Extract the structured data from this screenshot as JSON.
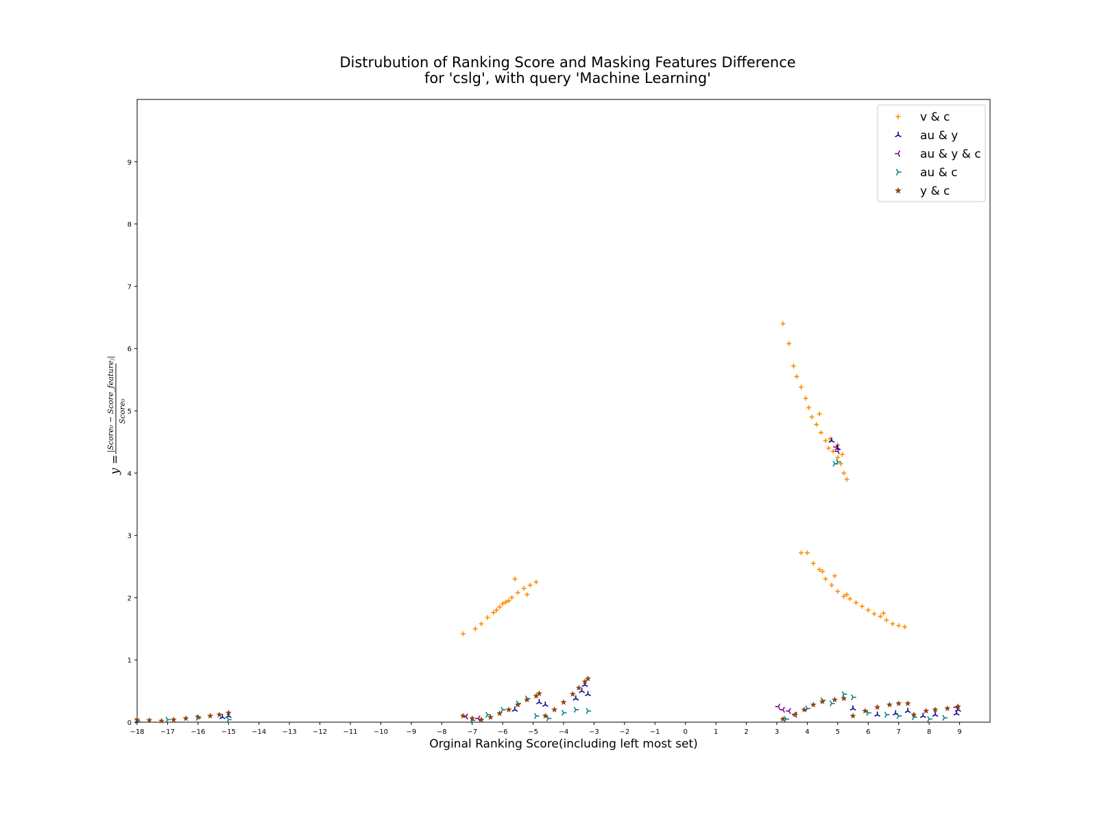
{
  "chart_data": {
    "type": "scatter",
    "title": [
      "Distrubution of Ranking Score and Masking Features Difference",
      "for 'cslg', with query 'Machine Learning'"
    ],
    "xlabel": "Orginal Ranking Score(including left most set)",
    "ylabel": "y = |Score_0 − Score_feature_j| / Score_0",
    "xlim": [
      -18,
      10
    ],
    "ylim": [
      0,
      10
    ],
    "xticks": [
      -18,
      -17,
      -16,
      -15,
      -14,
      -13,
      -12,
      -11,
      -10,
      -9,
      -8,
      -7,
      -6,
      -5,
      -4,
      -3,
      -2,
      -1,
      0,
      1,
      2,
      3,
      4,
      5,
      6,
      7,
      8,
      9
    ],
    "xtick_labels": [
      "−18",
      "−17",
      "−16",
      "−15",
      "−14",
      "−13",
      "−12",
      "−11",
      "−10",
      "−9",
      "−8",
      "−7",
      "−6",
      "−5",
      "−4",
      "−3",
      "−2",
      "−1",
      "0",
      "1",
      "2",
      "3",
      "4",
      "5",
      "6",
      "7",
      "8",
      "9"
    ],
    "yticks": [
      0,
      1,
      2,
      3,
      4,
      5,
      6,
      7,
      8,
      9
    ],
    "ytick_labels": [
      "0",
      "1",
      "2",
      "3",
      "4",
      "5",
      "6",
      "7",
      "8",
      "9"
    ],
    "grid": false,
    "legend_position": "top-right",
    "series": [
      {
        "name": "v & c",
        "marker": "plus",
        "color": "#ff8c00",
        "points": [
          [
            -7.3,
            1.42
          ],
          [
            -6.9,
            1.5
          ],
          [
            -6.7,
            1.58
          ],
          [
            -6.5,
            1.68
          ],
          [
            -6.3,
            1.76
          ],
          [
            -6.1,
            1.85
          ],
          [
            -5.9,
            1.93
          ],
          [
            -5.7,
            2.0
          ],
          [
            -5.5,
            2.08
          ],
          [
            -5.3,
            2.15
          ],
          [
            -5.1,
            2.2
          ],
          [
            -4.9,
            2.25
          ],
          [
            -5.6,
            2.3
          ],
          [
            -6.0,
            1.9
          ],
          [
            -5.2,
            2.05
          ],
          [
            -5.8,
            1.95
          ],
          [
            -6.2,
            1.8
          ],
          [
            3.2,
            6.4
          ],
          [
            3.4,
            6.08
          ],
          [
            3.55,
            5.72
          ],
          [
            3.65,
            5.55
          ],
          [
            3.8,
            5.38
          ],
          [
            3.95,
            5.2
          ],
          [
            4.05,
            5.05
          ],
          [
            4.15,
            4.9
          ],
          [
            4.3,
            4.78
          ],
          [
            4.45,
            4.65
          ],
          [
            4.6,
            4.52
          ],
          [
            4.7,
            4.4
          ],
          [
            4.85,
            4.35
          ],
          [
            5.0,
            4.25
          ],
          [
            5.1,
            4.15
          ],
          [
            5.2,
            4.0
          ],
          [
            5.3,
            3.9
          ],
          [
            4.4,
            4.95
          ],
          [
            4.75,
            4.55
          ],
          [
            5.0,
            4.45
          ],
          [
            5.15,
            4.3
          ],
          [
            3.8,
            2.72
          ],
          [
            4.0,
            2.72
          ],
          [
            4.2,
            2.55
          ],
          [
            4.4,
            2.45
          ],
          [
            4.6,
            2.3
          ],
          [
            4.8,
            2.2
          ],
          [
            5.0,
            2.1
          ],
          [
            5.2,
            2.02
          ],
          [
            5.4,
            1.98
          ],
          [
            5.6,
            1.92
          ],
          [
            5.8,
            1.86
          ],
          [
            6.0,
            1.8
          ],
          [
            6.2,
            1.74
          ],
          [
            6.4,
            1.7
          ],
          [
            6.6,
            1.64
          ],
          [
            6.8,
            1.58
          ],
          [
            7.0,
            1.55
          ],
          [
            7.2,
            1.53
          ],
          [
            4.9,
            2.35
          ],
          [
            5.3,
            2.05
          ],
          [
            6.5,
            1.75
          ],
          [
            4.5,
            2.42
          ]
        ]
      },
      {
        "name": "au & y",
        "marker": "tri-up",
        "color": "#00008b",
        "points": [
          [
            -15.0,
            0.1
          ],
          [
            -15.2,
            0.08
          ],
          [
            -5.6,
            0.2
          ],
          [
            -4.8,
            0.32
          ],
          [
            -4.6,
            0.28
          ],
          [
            -3.6,
            0.38
          ],
          [
            -3.4,
            0.5
          ],
          [
            -3.3,
            0.6
          ],
          [
            -3.2,
            0.45
          ],
          [
            4.8,
            4.52
          ],
          [
            5.0,
            4.4
          ],
          [
            5.5,
            0.22
          ],
          [
            6.3,
            0.12
          ],
          [
            6.9,
            0.14
          ],
          [
            7.3,
            0.18
          ],
          [
            7.8,
            0.1
          ],
          [
            8.2,
            0.12
          ],
          [
            8.9,
            0.14
          ],
          [
            8.95,
            0.2
          ]
        ]
      },
      {
        "name": "au & y & c",
        "marker": "tri-left",
        "color": "#800080",
        "points": [
          [
            3.05,
            0.25
          ],
          [
            3.2,
            0.2
          ],
          [
            3.4,
            0.18
          ],
          [
            3.6,
            0.12
          ],
          [
            4.95,
            4.42
          ],
          [
            5.0,
            4.35
          ],
          [
            -7.2,
            0.09
          ],
          [
            -6.8,
            0.06
          ],
          [
            8.9,
            0.24
          ]
        ]
      },
      {
        "name": "au & c",
        "marker": "tri-right",
        "color": "#008080",
        "points": [
          [
            -18,
            0.02
          ],
          [
            -17,
            0.04
          ],
          [
            -16,
            0.07
          ],
          [
            -15,
            0.04
          ],
          [
            -7.0,
            0.03
          ],
          [
            -6.5,
            0.12
          ],
          [
            -6.0,
            0.2
          ],
          [
            -5.5,
            0.3
          ],
          [
            -5.2,
            0.38
          ],
          [
            -4.9,
            0.1
          ],
          [
            -4.5,
            0.06
          ],
          [
            -4.0,
            0.15
          ],
          [
            -3.6,
            0.2
          ],
          [
            -3.2,
            0.18
          ],
          [
            3.3,
            0.05
          ],
          [
            4.0,
            0.22
          ],
          [
            4.5,
            0.35
          ],
          [
            4.8,
            0.3
          ],
          [
            5.2,
            0.45
          ],
          [
            5.5,
            0.4
          ],
          [
            6.0,
            0.15
          ],
          [
            6.6,
            0.12
          ],
          [
            7.0,
            0.1
          ],
          [
            7.5,
            0.08
          ],
          [
            8.0,
            0.05
          ],
          [
            8.5,
            0.07
          ],
          [
            4.9,
            4.15
          ],
          [
            5.0,
            4.18
          ]
        ]
      },
      {
        "name": "y & c",
        "marker": "star",
        "color": "#8b4513",
        "points": [
          [
            -18,
            0.04
          ],
          [
            -17.6,
            0.03
          ],
          [
            -17.2,
            0.02
          ],
          [
            -16.8,
            0.04
          ],
          [
            -16.4,
            0.06
          ],
          [
            -16.0,
            0.08
          ],
          [
            -15.6,
            0.1
          ],
          [
            -15.3,
            0.12
          ],
          [
            -15.0,
            0.15
          ],
          [
            -7.3,
            0.1
          ],
          [
            -7.0,
            0.06
          ],
          [
            -6.7,
            0.04
          ],
          [
            -6.4,
            0.08
          ],
          [
            -6.1,
            0.14
          ],
          [
            -5.8,
            0.2
          ],
          [
            -5.5,
            0.28
          ],
          [
            -5.2,
            0.36
          ],
          [
            -4.9,
            0.42
          ],
          [
            -4.8,
            0.46
          ],
          [
            -4.6,
            0.1
          ],
          [
            -4.3,
            0.2
          ],
          [
            -4.0,
            0.32
          ],
          [
            -3.7,
            0.45
          ],
          [
            -3.5,
            0.55
          ],
          [
            -3.3,
            0.65
          ],
          [
            -3.2,
            0.7
          ],
          [
            3.2,
            0.05
          ],
          [
            3.6,
            0.12
          ],
          [
            3.9,
            0.2
          ],
          [
            4.2,
            0.28
          ],
          [
            4.5,
            0.33
          ],
          [
            4.9,
            0.36
          ],
          [
            5.2,
            0.38
          ],
          [
            5.5,
            0.1
          ],
          [
            5.9,
            0.18
          ],
          [
            6.3,
            0.24
          ],
          [
            6.7,
            0.28
          ],
          [
            7.0,
            0.3
          ],
          [
            7.3,
            0.3
          ],
          [
            7.5,
            0.12
          ],
          [
            7.9,
            0.18
          ],
          [
            8.2,
            0.2
          ],
          [
            8.6,
            0.22
          ],
          [
            8.95,
            0.25
          ]
        ]
      }
    ]
  }
}
